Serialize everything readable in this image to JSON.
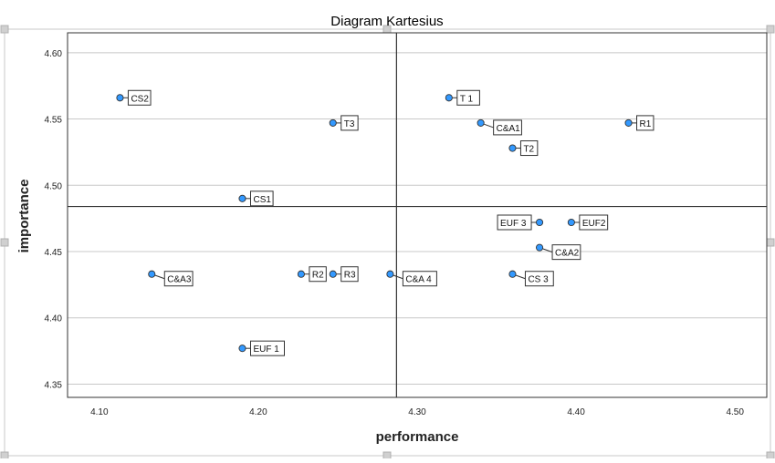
{
  "chart_data": {
    "type": "scatter",
    "title": "Diagram Kartesius",
    "xlabel": "performance",
    "ylabel": "importance",
    "xlim": [
      4.08,
      4.52
    ],
    "ylim": [
      4.34,
      4.615
    ],
    "x_ticks": [
      "4.10",
      "4.20",
      "4.30",
      "4.40",
      "4.50"
    ],
    "y_ticks": [
      "4.35",
      "4.40",
      "4.45",
      "4.50",
      "4.55",
      "4.60"
    ],
    "grid": "horizontal",
    "reference_lines": {
      "x": 4.287,
      "y": 4.484
    },
    "marker_color": "#3399ff",
    "points": [
      {
        "label": "CS2",
        "x": 4.113,
        "y": 4.566,
        "label_pos": "right"
      },
      {
        "label": "T3",
        "x": 4.247,
        "y": 4.547,
        "label_pos": "right"
      },
      {
        "label": "CS1",
        "x": 4.19,
        "y": 4.49,
        "label_pos": "right"
      },
      {
        "label": "C&A3",
        "x": 4.133,
        "y": 4.433,
        "label_pos": "lower-right"
      },
      {
        "label": "R2",
        "x": 4.227,
        "y": 4.433,
        "label_pos": "right"
      },
      {
        "label": "R3",
        "x": 4.247,
        "y": 4.433,
        "label_pos": "right"
      },
      {
        "label": "C&A 4",
        "x": 4.283,
        "y": 4.433,
        "label_pos": "lower-right"
      },
      {
        "label": "EUF 1",
        "x": 4.19,
        "y": 4.377,
        "label_pos": "right"
      },
      {
        "label": "T 1",
        "x": 4.32,
        "y": 4.566,
        "label_pos": "right"
      },
      {
        "label": "C&A1",
        "x": 4.34,
        "y": 4.547,
        "label_pos": "lower-right"
      },
      {
        "label": "R1",
        "x": 4.433,
        "y": 4.547,
        "label_pos": "right"
      },
      {
        "label": "T2",
        "x": 4.36,
        "y": 4.528,
        "label_pos": "right"
      },
      {
        "label": "EUF 3",
        "x": 4.377,
        "y": 4.472,
        "label_pos": "left"
      },
      {
        "label": "EUF2",
        "x": 4.397,
        "y": 4.472,
        "label_pos": "right"
      },
      {
        "label": "C&A2",
        "x": 4.377,
        "y": 4.453,
        "label_pos": "lower-right"
      },
      {
        "label": "CS 3",
        "x": 4.36,
        "y": 4.433,
        "label_pos": "lower-right"
      }
    ]
  }
}
